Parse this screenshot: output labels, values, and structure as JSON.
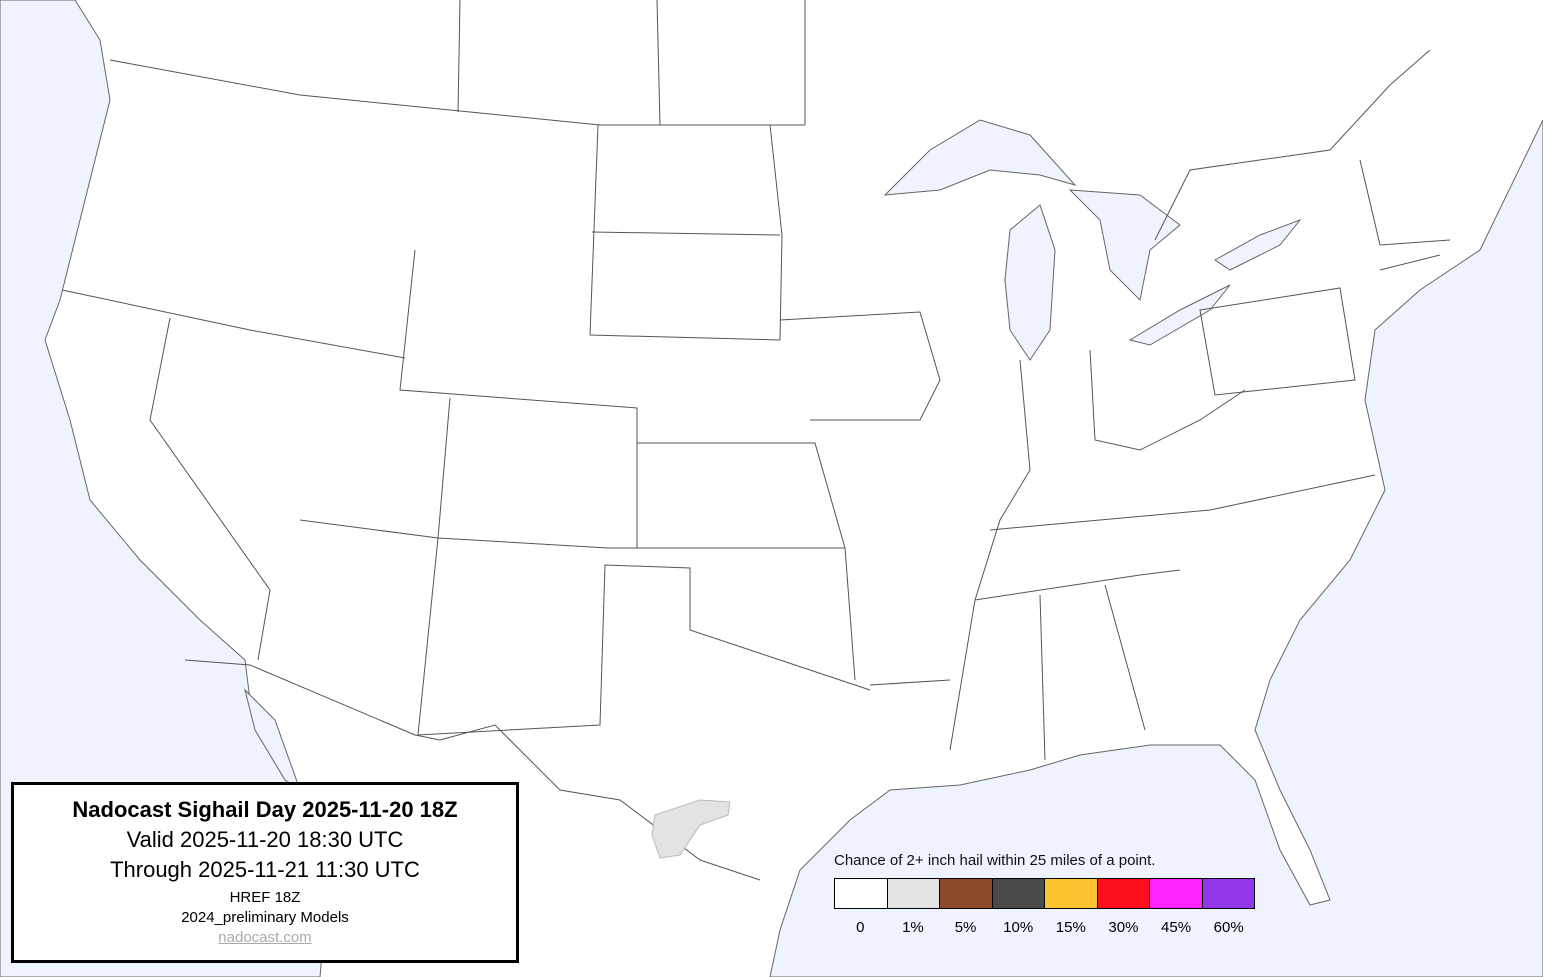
{
  "title_box": {
    "title": "Nadocast Sighail Day 2025-11-20 18Z",
    "valid": "Valid 2025-11-20 18:30 UTC",
    "through": "Through 2025-11-21 11:30 UTC",
    "model_run": "HREF 18Z",
    "models": "2024_preliminary Models",
    "link": "nadocast.com"
  },
  "legend": {
    "title": "Chance of 2+ inch hail within 25 miles of a point.",
    "bins": [
      {
        "label": "0",
        "color": "#ffffff"
      },
      {
        "label": "1%",
        "color": "#e3e3e3"
      },
      {
        "label": "5%",
        "color": "#8b482a"
      },
      {
        "label": "10%",
        "color": "#4a4a4a"
      },
      {
        "label": "15%",
        "color": "#fdc42f"
      },
      {
        "label": "30%",
        "color": "#fd101e"
      },
      {
        "label": "45%",
        "color": "#fd23fb"
      },
      {
        "label": "60%",
        "color": "#9137e8"
      }
    ]
  },
  "map": {
    "water_color": "#eef3fd",
    "land_color": "#ffffff",
    "forecast_areas": [
      {
        "probability_bin": "1%",
        "region": "south Texas / northern Mexico"
      }
    ]
  }
}
